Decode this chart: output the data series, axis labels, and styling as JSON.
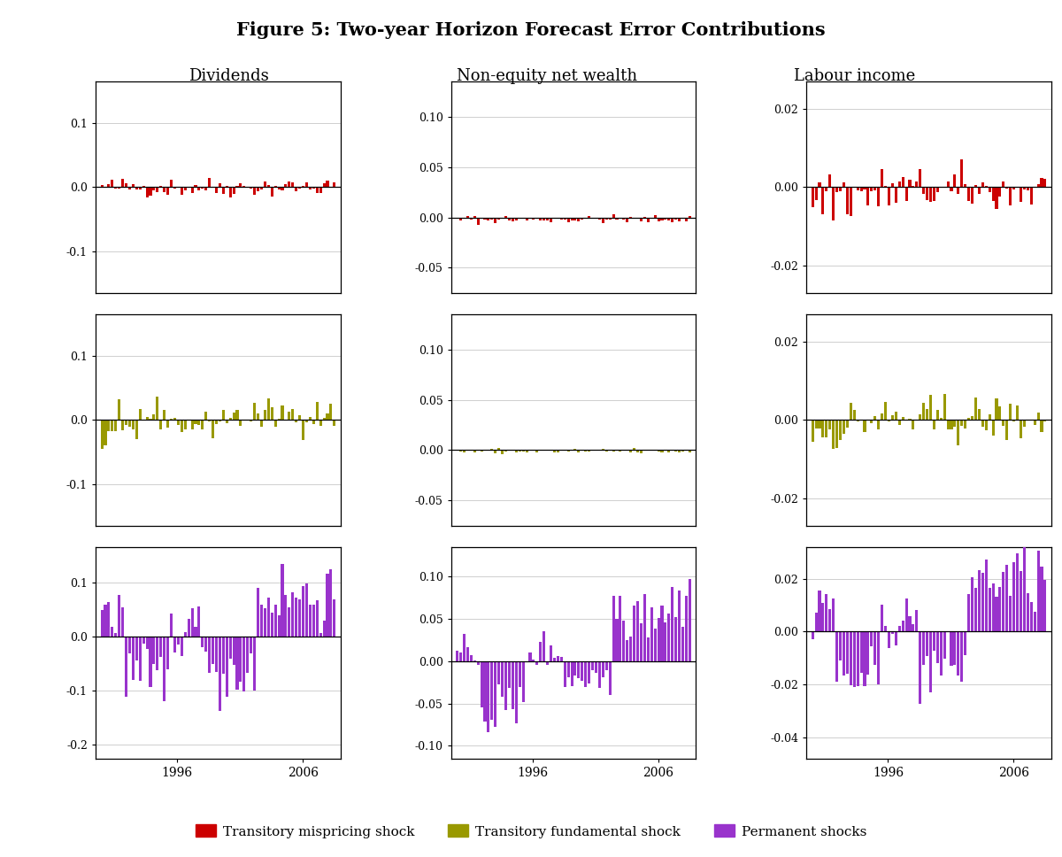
{
  "title": "Figure 5: Two-year Horizon Forecast Error Contributions",
  "col_titles": [
    "Dividends",
    "Non-equity net wealth",
    "Labour income"
  ],
  "legend_labels": [
    "Transitory mispricing shock",
    "Transitory fundamental shock",
    "Permanent shocks"
  ],
  "legend_colors": [
    "#cc0000",
    "#999900",
    "#9933cc"
  ],
  "background_color": "#ffffff",
  "n_bars": 68,
  "year_start": 1990.0,
  "year_end": 2008.5,
  "xtick_years": [
    1996,
    2006
  ],
  "yticks": [
    [
      [
        0.1,
        0.0,
        -0.1
      ],
      [
        0.1,
        0.05,
        0.0,
        -0.05
      ],
      [
        0.02,
        0.0,
        -0.02
      ]
    ],
    [
      [
        0.1,
        0.0,
        -0.1
      ],
      [
        0.1,
        0.05,
        0.0,
        -0.05
      ],
      [
        0.02,
        0.0,
        -0.02
      ]
    ],
    [
      [
        0.1,
        0.0,
        -0.1,
        -0.2
      ],
      [
        0.1,
        0.05,
        0.0,
        -0.05,
        -0.1
      ],
      [
        0.02,
        0.0,
        -0.02,
        -0.04
      ]
    ]
  ],
  "ylims": [
    [
      [
        -0.165,
        0.165
      ],
      [
        -0.075,
        0.135
      ],
      [
        -0.027,
        0.027
      ]
    ],
    [
      [
        -0.165,
        0.165
      ],
      [
        -0.075,
        0.135
      ],
      [
        -0.027,
        0.027
      ]
    ],
    [
      [
        -0.225,
        0.165
      ],
      [
        -0.115,
        0.135
      ],
      [
        -0.048,
        0.032
      ]
    ]
  ],
  "ytick_decimals": [
    [
      1,
      2,
      2
    ],
    [
      1,
      2,
      2
    ],
    [
      1,
      2,
      2
    ]
  ],
  "grid_color": "#c8c8c8",
  "spine_color": "#000000",
  "zero_line_color": "#000000"
}
